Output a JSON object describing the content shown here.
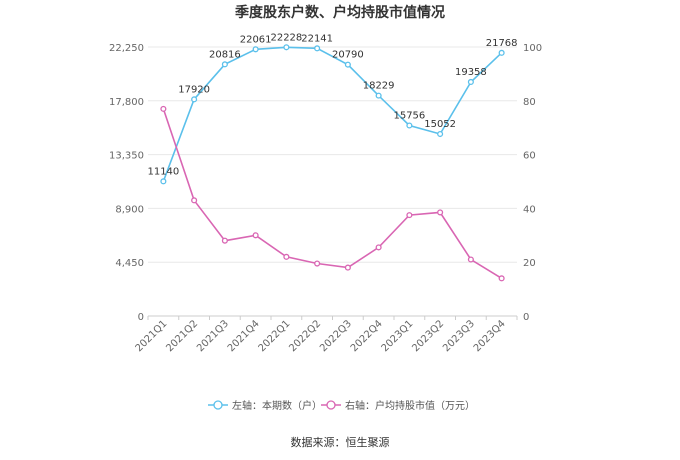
{
  "chart_data": {
    "type": "line",
    "title": "季度股东户数、户均持股市值情况",
    "categories": [
      "2021Q1",
      "2021Q2",
      "2021Q3",
      "2021Q4",
      "2022Q1",
      "2022Q2",
      "2022Q3",
      "2022Q4",
      "2023Q1",
      "2023Q2",
      "2023Q3",
      "2023Q4"
    ],
    "y_left": {
      "ticks": [
        "0",
        "4,450",
        "8,900",
        "13,350",
        "17,800",
        "22,250"
      ],
      "range": [
        0,
        22250
      ]
    },
    "y_right": {
      "ticks": [
        "0",
        "20",
        "40",
        "60",
        "80",
        "100"
      ],
      "range": [
        0,
        100
      ]
    },
    "series": [
      {
        "name": "左轴：本期数（户）",
        "axis": "left",
        "color": "#5bc0eb",
        "values": [
          11140,
          17920,
          20816,
          22061,
          22228,
          22141,
          20790,
          18229,
          15756,
          15052,
          19358,
          21768
        ],
        "labels": [
          "11140",
          "17920",
          "20816",
          "22061",
          "22228",
          "22141",
          "20790",
          "18229",
          "15756",
          "15052",
          "19358",
          "21768"
        ]
      },
      {
        "name": "右轴：户均持股市值（万元）",
        "axis": "right",
        "color": "#d966b3",
        "values": [
          77,
          43,
          28,
          30,
          22,
          19.5,
          18,
          25.5,
          37.5,
          38.5,
          21,
          14
        ]
      }
    ],
    "legend_position": "bottom",
    "grid": true
  },
  "source": "数据来源：恒生聚源"
}
